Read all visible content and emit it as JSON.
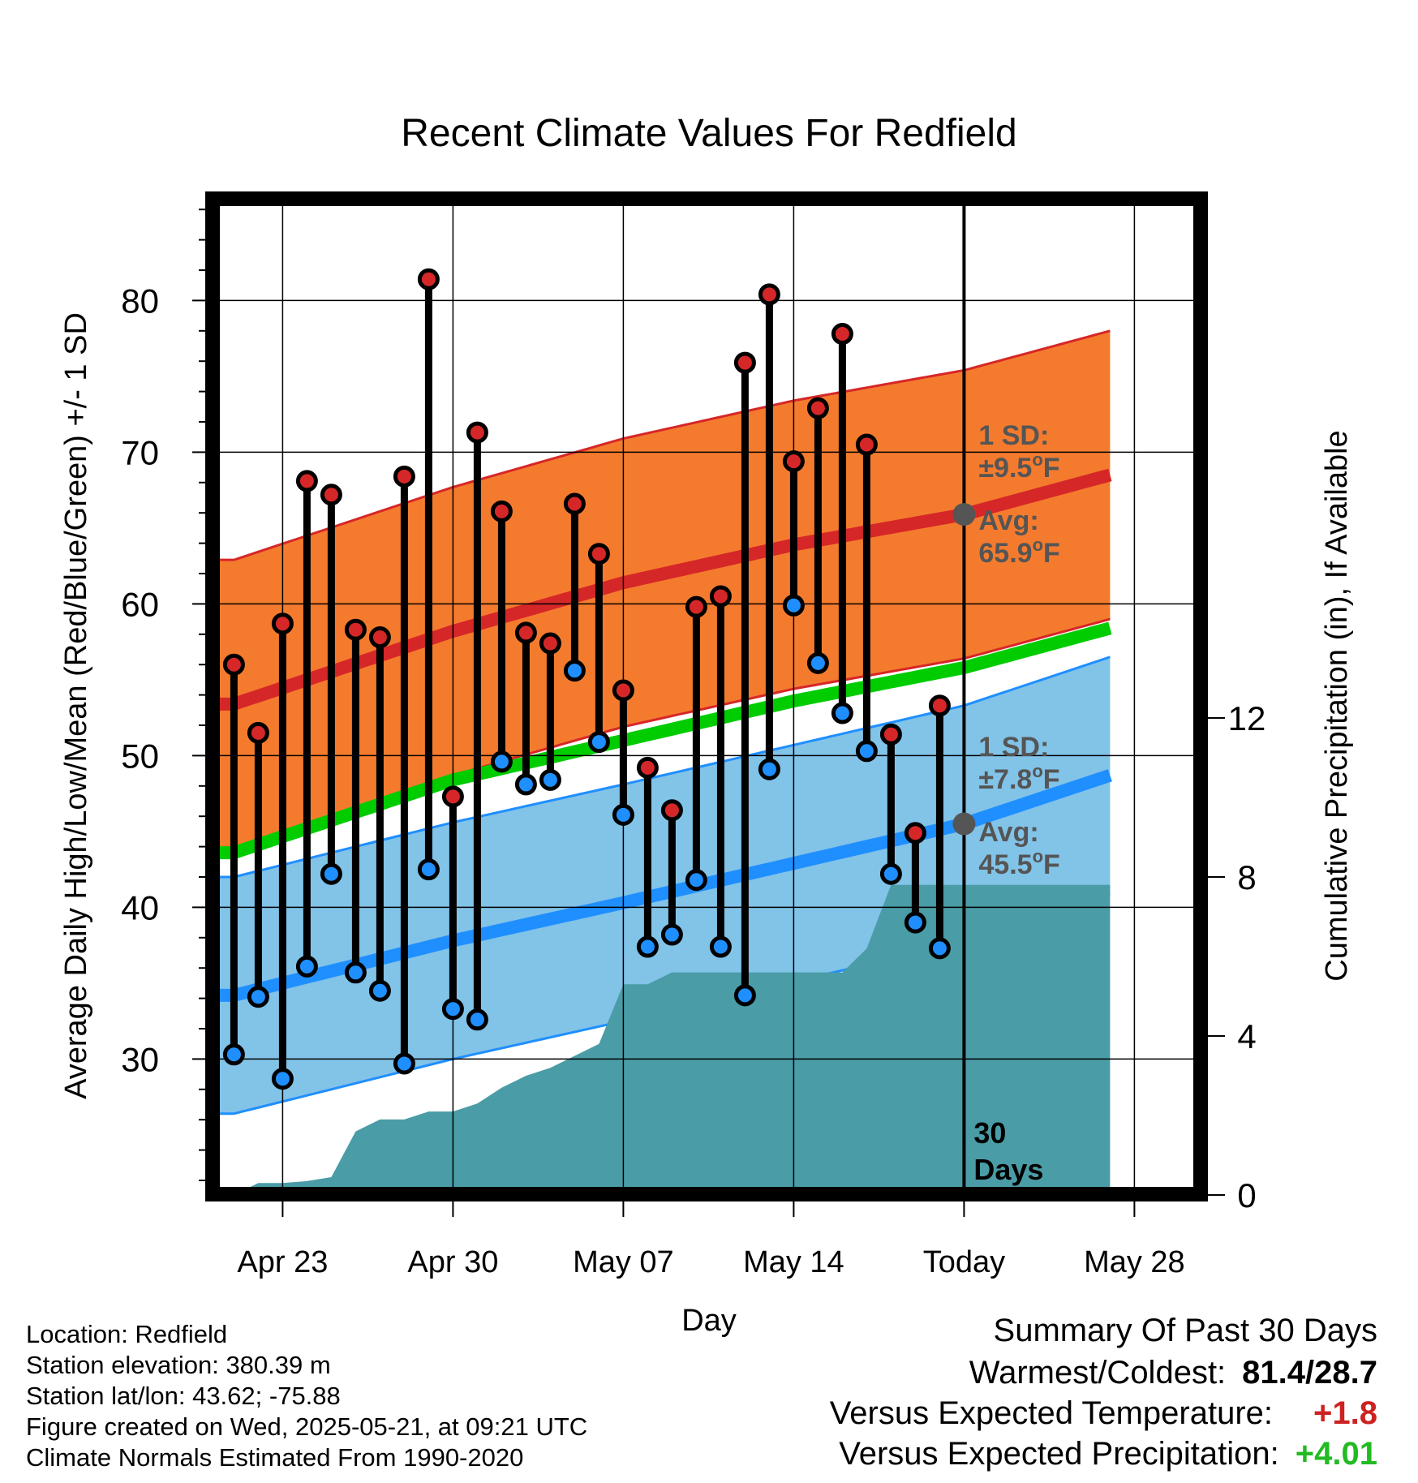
{
  "chart_data": {
    "type": "bar",
    "title": "Recent Climate Values For Redfield",
    "xlabel": "Day",
    "ylabel_left": "Average Daily High/Low/Mean (Red/Blue/Green) +/- 1 SD",
    "ylabel_right": "Cumulative Precipitation (in), If Available",
    "ylim": [
      20,
      86
    ],
    "y2lim": [
      0,
      16
    ],
    "xlim": [
      -3,
      34
    ],
    "grid": true,
    "x_ticks": [
      {
        "x": 0,
        "label": "Apr 23"
      },
      {
        "x": 7,
        "label": "Apr 30"
      },
      {
        "x": 14,
        "label": "May 07"
      },
      {
        "x": 21,
        "label": "May 14"
      },
      {
        "x": 28,
        "label": "Today"
      },
      {
        "x": 35,
        "label": "May 28"
      }
    ],
    "y_ticks": [
      30,
      40,
      50,
      60,
      70,
      80
    ],
    "y2_ticks": [
      0,
      4,
      8,
      12
    ],
    "today_x": 28,
    "period_label": [
      "30",
      "Days"
    ],
    "colors": {
      "high": "#d62728",
      "low": "#1f8fff",
      "mean": "#00cc00",
      "high_band": "#f47b2e",
      "low_band": "#82c3e8",
      "precip": "#4a9ca6",
      "annotation": "#555555"
    },
    "high_normal": [
      {
        "x": -2,
        "y": 53.4
      },
      {
        "x": 7,
        "y": 58.2
      },
      {
        "x": 14,
        "y": 61.4
      },
      {
        "x": 21,
        "y": 63.9
      },
      {
        "x": 28,
        "y": 65.9
      },
      {
        "x": 34,
        "y": 68.5
      }
    ],
    "high_sd": 9.5,
    "low_normal": [
      {
        "x": -2,
        "y": 34.2
      },
      {
        "x": 7,
        "y": 37.8
      },
      {
        "x": 14,
        "y": 40.3
      },
      {
        "x": 21,
        "y": 42.9
      },
      {
        "x": 28,
        "y": 45.5
      },
      {
        "x": 34,
        "y": 48.7
      }
    ],
    "low_sd": 7.8,
    "mean_normal": [
      {
        "x": -2,
        "y": 43.6
      },
      {
        "x": 7,
        "y": 48.4
      },
      {
        "x": 14,
        "y": 51.0
      },
      {
        "x": 21,
        "y": 53.6
      },
      {
        "x": 28,
        "y": 55.8
      },
      {
        "x": 34,
        "y": 58.4
      }
    ],
    "high_annotation": {
      "sd_title": "1 SD:",
      "sd": "±9.5",
      "avg_title": "Avg:",
      "avg": "65.9",
      "unit": "F",
      "deg": "o"
    },
    "low_annotation": {
      "sd_title": "1 SD:",
      "sd": "±7.8",
      "avg_title": "Avg:",
      "avg": "45.5",
      "unit": "F",
      "deg": "o"
    },
    "series": [
      {
        "name": "High",
        "x": [
          -2,
          -1,
          0,
          1,
          2,
          3,
          4,
          5,
          6,
          7,
          8,
          9,
          10,
          11,
          12,
          13,
          14,
          15,
          16,
          17,
          18,
          19,
          20,
          21,
          22,
          23,
          24,
          25,
          26,
          27
        ],
        "values": [
          56.0,
          51.5,
          58.7,
          68.1,
          67.2,
          58.3,
          57.8,
          68.4,
          81.4,
          47.3,
          71.3,
          66.1,
          58.1,
          57.4,
          66.6,
          63.3,
          54.3,
          49.2,
          46.4,
          59.8,
          60.5,
          75.9,
          80.4,
          69.4,
          72.9,
          77.8,
          70.5,
          51.4,
          44.9,
          53.3
        ]
      },
      {
        "name": "Low",
        "x": [
          -2,
          -1,
          0,
          1,
          2,
          3,
          4,
          5,
          6,
          7,
          8,
          9,
          10,
          11,
          12,
          13,
          14,
          15,
          16,
          17,
          18,
          19,
          20,
          21,
          22,
          23,
          24,
          25,
          26,
          27
        ],
        "values": [
          30.3,
          34.1,
          28.7,
          36.1,
          42.2,
          35.7,
          34.5,
          29.7,
          42.5,
          33.3,
          32.6,
          49.6,
          48.1,
          48.4,
          55.6,
          50.9,
          46.1,
          37.4,
          38.2,
          41.8,
          37.4,
          34.2,
          49.1,
          59.9,
          56.1,
          52.8,
          50.3,
          42.2,
          39.0,
          37.3
        ]
      }
    ],
    "precip_cumulative": {
      "x": [
        -2,
        -1,
        0,
        1,
        2,
        3,
        4,
        5,
        6,
        7,
        8,
        9,
        10,
        11,
        12,
        13,
        14,
        15,
        16,
        17,
        18,
        19,
        20,
        21,
        22,
        23,
        24,
        25,
        26,
        27,
        28,
        34
      ],
      "values": [
        0.0,
        0.3,
        0.3,
        0.35,
        0.45,
        1.6,
        1.9,
        1.9,
        2.1,
        2.1,
        2.3,
        2.7,
        3.0,
        3.2,
        3.5,
        3.8,
        5.3,
        5.3,
        5.6,
        5.6,
        5.6,
        5.6,
        5.6,
        5.6,
        5.6,
        5.6,
        6.2,
        7.8,
        7.8,
        7.8,
        7.8,
        7.8
      ]
    }
  },
  "footer": {
    "location": "Location: Redfield",
    "elevation": "Station elevation: 380.39 m",
    "latlon": "Station lat/lon: 43.62; -75.88",
    "created": "Figure created on Wed, 2025-05-21, at 09:21 UTC",
    "normals": "Climate Normals Estimated From 1990-2020"
  },
  "summary": {
    "title": "Summary Of Past 30 Days",
    "warm_cold_label": "Warmest/Coldest:",
    "warm_cold_value": "81.4/28.7",
    "temp_label": "Versus Expected Temperature:",
    "temp_value": "+1.8",
    "temp_color": "#cc2222",
    "precip_label": "Versus Expected Precipitation:",
    "precip_value": "+4.01",
    "precip_color": "#22bb22"
  }
}
